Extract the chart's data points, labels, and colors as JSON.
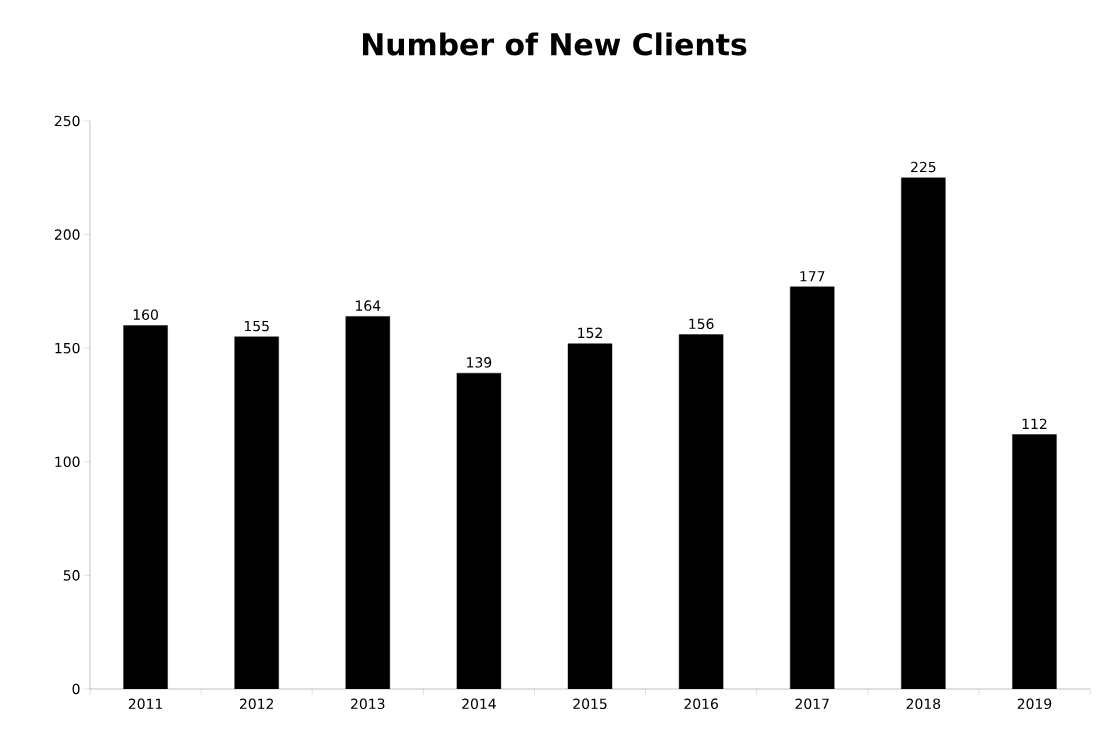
{
  "chart_data": {
    "type": "bar",
    "title": "Number of New Clients",
    "categories": [
      "2011",
      "2012",
      "2013",
      "2014",
      "2015",
      "2016",
      "2017",
      "2018",
      "2019"
    ],
    "values": [
      160,
      155,
      164,
      139,
      152,
      156,
      177,
      225,
      112
    ],
    "color": "#000000",
    "data_labels": true,
    "ylim": [
      0,
      250
    ],
    "yticks": [
      0,
      50,
      100,
      150,
      200,
      250
    ]
  }
}
